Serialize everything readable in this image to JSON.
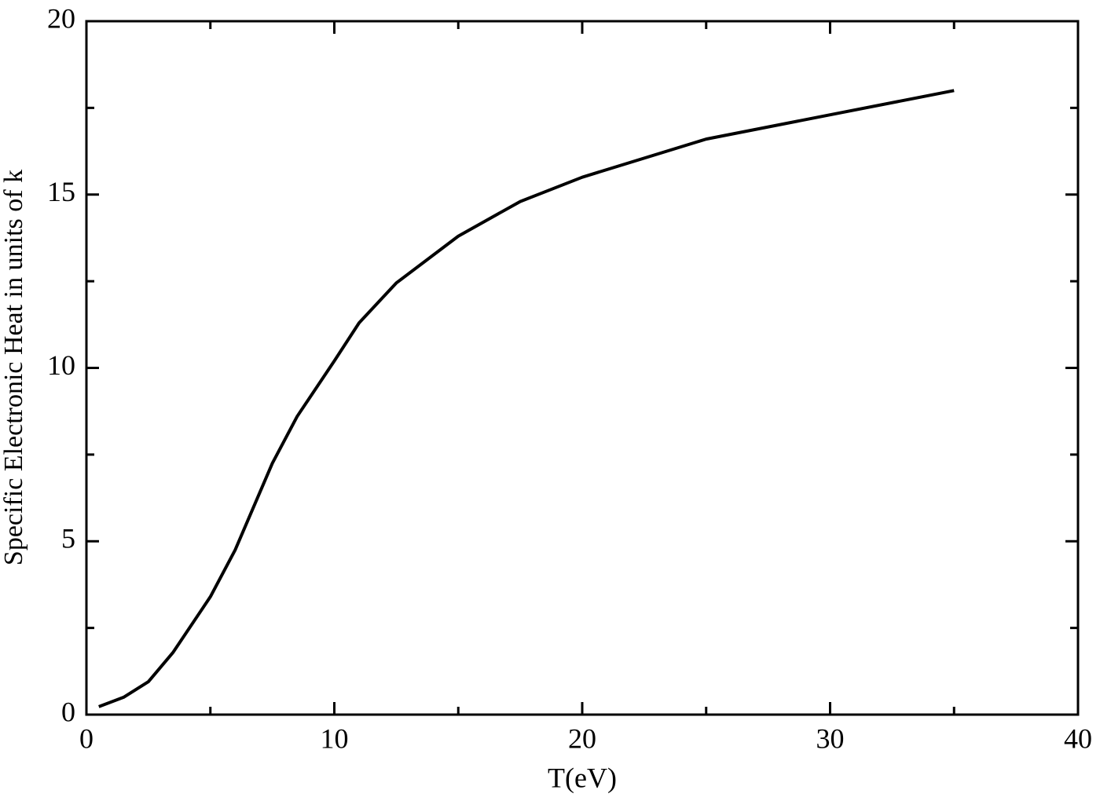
{
  "chart_data": {
    "type": "line",
    "xlabel": "T(eV)",
    "ylabel": "Specific Electronic Heat in units of k",
    "x": [
      0.5,
      1.5,
      2.5,
      3.5,
      5,
      6,
      7.5,
      8.5,
      10,
      11,
      12.5,
      15,
      17.5,
      20,
      25,
      30,
      35
    ],
    "series": [
      {
        "color": "#000000",
        "values": [
          0.23,
          0.5,
          0.95,
          1.8,
          3.4,
          4.75,
          7.25,
          8.6,
          10.2,
          11.3,
          12.45,
          13.8,
          14.8,
          15.5,
          16.6,
          17.3,
          18.0
        ]
      }
    ],
    "xlim": [
      0,
      40
    ],
    "xticks": [
      0,
      10,
      20,
      30,
      40
    ],
    "xminorticks": [
      5,
      15,
      25,
      35
    ],
    "ylim": [
      0,
      20
    ],
    "yticks": [
      0,
      5,
      10,
      15,
      20
    ],
    "yminorticks": [
      2.5,
      7.5,
      12.5,
      17.5
    ],
    "grid": false
  }
}
